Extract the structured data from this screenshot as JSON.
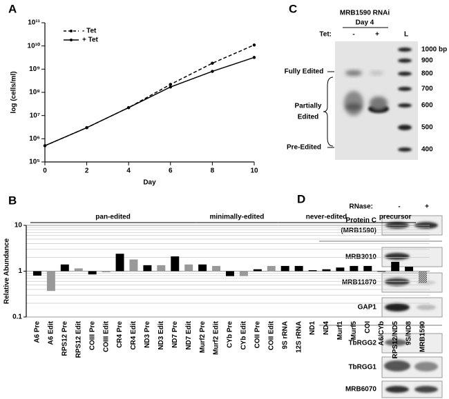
{
  "chart_data": [
    {
      "type": "line",
      "panel": "A",
      "xlabel": "Day",
      "ylabel": "log (cells/ml)",
      "x": [
        0,
        2,
        4,
        6,
        8,
        10
      ],
      "series": [
        {
          "name": "- Tet",
          "color": "#000000",
          "dashed": true,
          "values": [
            500000,
            3000000,
            22000000,
            220000000,
            1800000000,
            11000000000
          ]
        },
        {
          "name": "+ Tet",
          "color": "#000000",
          "dashed": false,
          "values": [
            500000,
            3000000,
            22000000,
            170000000,
            800000000,
            3200000000
          ]
        }
      ],
      "xlim": [
        0,
        10
      ],
      "xticks": [
        0,
        2,
        4,
        6,
        8,
        10
      ],
      "ylim": [
        100000,
        100000000000
      ],
      "log_y": true,
      "yticks": [
        {
          "value": 100000,
          "label": "10⁵"
        },
        {
          "value": 1000000,
          "label": "10⁶"
        },
        {
          "value": 10000000,
          "label": "10⁷"
        },
        {
          "value": 100000000,
          "label": "10⁸"
        },
        {
          "value": 1000000000,
          "label": "10⁹"
        },
        {
          "value": 10000000000,
          "label": "10¹⁰"
        },
        {
          "value": 100000000000,
          "label": "10¹¹"
        }
      ],
      "legend": "upper left"
    },
    {
      "type": "bar",
      "panel": "B",
      "ylabel": "Relative Abundance",
      "categories": [
        "A6 Pre",
        "A6 Edit",
        "RPS12 Pre",
        "RPS12 Edit",
        "COIII Pre",
        "COIII Edit",
        "CR4 Pre",
        "CR4 Edit",
        "ND3 Pre",
        "ND3 Edit",
        "ND7 Pre",
        "ND7 Edit",
        "Murf2 Pre",
        "Murf2 Edit",
        "CYb Pre",
        "CYb Edit",
        "COII Pre",
        "COII Edit",
        "9S rRNA",
        "12S rRNA",
        "ND1",
        "ND4",
        "Murf1",
        "Murf5",
        "COI",
        "A6/CYb",
        "RPS12/ND5",
        "9S/ND8",
        "MRB1590"
      ],
      "values": [
        0.8,
        0.37,
        1.4,
        1.15,
        0.85,
        0.95,
        2.4,
        1.8,
        1.35,
        1.35,
        2.1,
        1.4,
        1.4,
        1.3,
        0.78,
        0.78,
        1.1,
        1.3,
        1.3,
        1.3,
        1.05,
        1.1,
        1.2,
        1.3,
        1.3,
        0.97,
        1.6,
        1.25,
        0.55
      ],
      "colors": [
        "#000000",
        "#999999",
        "#000000",
        "#999999",
        "#000000",
        "#999999",
        "#000000",
        "#999999",
        "#000000",
        "#999999",
        "#000000",
        "#999999",
        "#000000",
        "#999999",
        "#000000",
        "#999999",
        "#000000",
        "#999999",
        "#000000",
        "#000000",
        "#000000",
        "#000000",
        "#000000",
        "#000000",
        "#000000",
        "#000000",
        "#000000",
        "#000000",
        "#aaaaaa"
      ],
      "groups": [
        {
          "label": "pan-edited",
          "span": [
            0,
            11
          ]
        },
        {
          "label": "minimally-edited",
          "span": [
            12,
            17
          ]
        },
        {
          "label": "never-edited",
          "span": [
            18,
            24
          ]
        },
        {
          "label": "precursor",
          "span": [
            25,
            27
          ]
        }
      ],
      "ylim": [
        0.1,
        10
      ],
      "log_y": true,
      "yticks": [
        0.1,
        1,
        10
      ],
      "baseline": 1,
      "grid": true,
      "minor_grid": true
    }
  ],
  "gel": {
    "panel": "C",
    "title": "MRB1590 RNAi",
    "subtitle": "Day 4",
    "row_label": "Tet:",
    "lanes": [
      "-",
      "+",
      "L"
    ],
    "ladder": [
      "1000 bp",
      "900",
      "800",
      "700",
      "600",
      "500",
      "400"
    ],
    "annotations": {
      "fully": "Fully Edited",
      "partially_1": "Partially",
      "partially_2": "Edited",
      "pre": "Pre-Edited"
    }
  },
  "blots": {
    "panel": "D",
    "row_label": "RNase:",
    "lanes": [
      "-",
      "+"
    ],
    "labels": [
      "Protein C",
      "(MRB1590)",
      "MRB3010",
      "MRB11870",
      "GAP1",
      "TbRGG2",
      "TbRGG1",
      "MRB6070"
    ]
  }
}
